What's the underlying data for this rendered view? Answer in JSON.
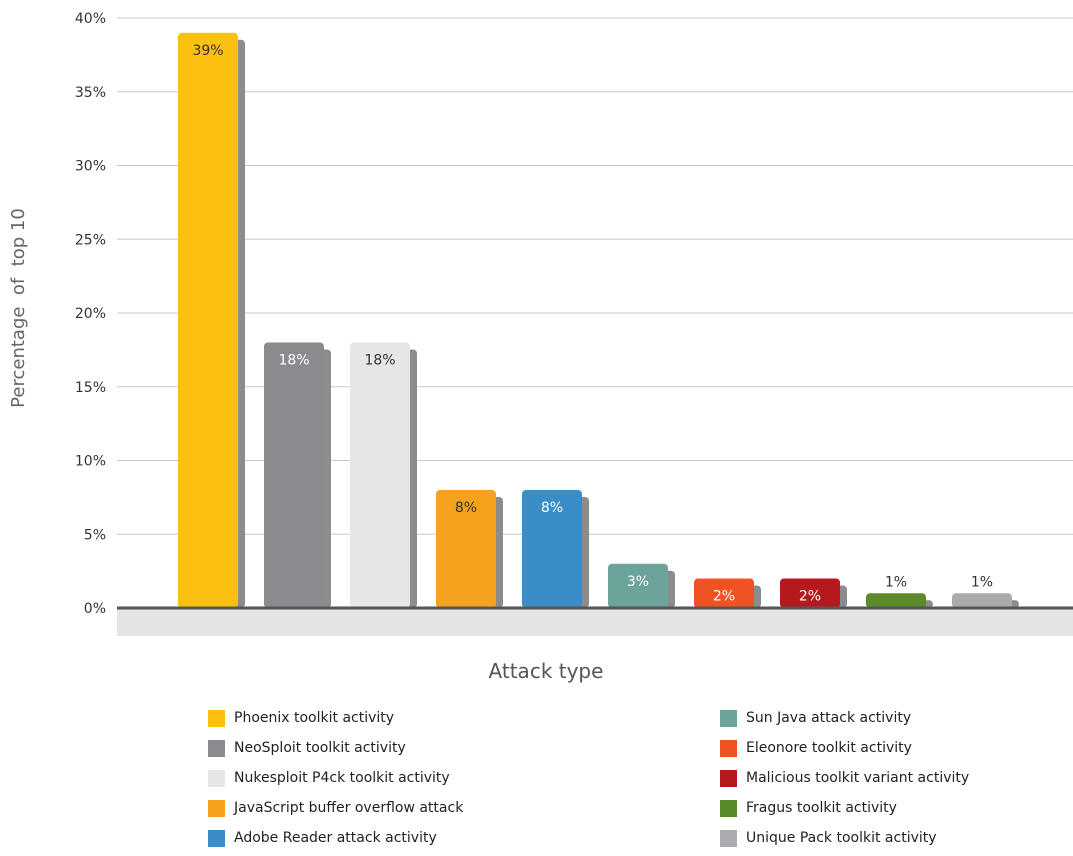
{
  "chart_data": {
    "type": "bar",
    "xlabel": "Attack type",
    "ylabel": "Percentage  of  top 10",
    "ylim": [
      0,
      40
    ],
    "yticks": [
      "0%",
      "5%",
      "10%",
      "15%",
      "20%",
      "25%",
      "30%",
      "35%",
      "40%"
    ],
    "grid": true,
    "legend_position": "bottom",
    "categories": [
      "Phoenix toolkit activity",
      "NeoSploit toolkit activity",
      "Nukesploit P4ck toolkit activity",
      "JavaScript buffer overflow attack",
      "Adobe Reader attack activity",
      "Sun Java attack activity",
      "Eleonore toolkit activity",
      "Malicious toolkit variant activity",
      "Fragus toolkit activity",
      "Unique Pack toolkit activity"
    ],
    "values": [
      39,
      18,
      18,
      8,
      8,
      3,
      2,
      2,
      1,
      1
    ],
    "value_labels": [
      "39%",
      "18%",
      "18%",
      "8%",
      "8%",
      "3%",
      "2%",
      "2%",
      "1%",
      "1%"
    ],
    "colors": [
      "#fcc010",
      "#898b8e",
      "#e6e6e4",
      "#f6a21e",
      "#3a8dc6",
      "#6ca39b",
      "#ef5323",
      "#b5191e",
      "#5a8a2a",
      "#a9abae"
    ],
    "label_colors": [
      "#333333",
      "#ffffff",
      "#333333",
      "#333333",
      "#ffffff",
      "#ffffff",
      "#ffffff",
      "#ffffff",
      "#333333",
      "#333333"
    ],
    "label_inside": [
      true,
      true,
      true,
      true,
      true,
      true,
      true,
      true,
      false,
      false
    ]
  }
}
